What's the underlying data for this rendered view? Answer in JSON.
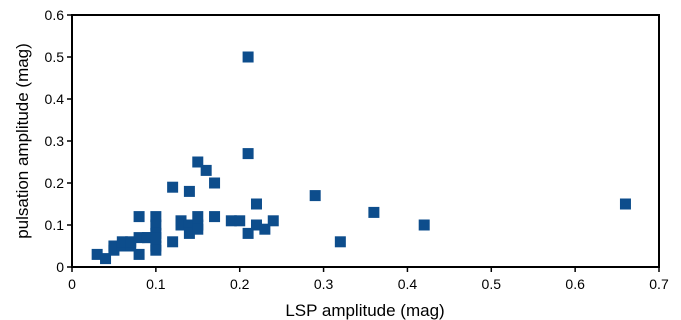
{
  "chart_data": {
    "type": "scatter",
    "title": "",
    "xlabel": "LSP amplitude (mag)",
    "ylabel": "pulsation amplitude (mag)",
    "xlim": [
      0,
      0.7
    ],
    "ylim": [
      0,
      0.6
    ],
    "xticks": [
      0,
      0.1,
      0.2,
      0.3,
      0.4,
      0.5,
      0.6,
      0.7
    ],
    "yticks": [
      0,
      0.1,
      0.2,
      0.3,
      0.4,
      0.5,
      0.6
    ],
    "xtick_labels": [
      "0",
      "0.1",
      "0.2",
      "0.3",
      "0.4",
      "0.5",
      "0.6",
      "0.7"
    ],
    "ytick_labels": [
      "0",
      "0.1",
      "0.2",
      "0.3",
      "0.4",
      "0.5",
      "0.6"
    ],
    "grid": false,
    "legend": "none",
    "marker": "square",
    "marker_color": "#0d4d8c",
    "series": [
      {
        "x": [
          0.03,
          0.04,
          0.05,
          0.05,
          0.06,
          0.06,
          0.07,
          0.07,
          0.08,
          0.08,
          0.08,
          0.09,
          0.09,
          0.1,
          0.1,
          0.1,
          0.1,
          0.1,
          0.1,
          0.12,
          0.12,
          0.13,
          0.13,
          0.14,
          0.14,
          0.14,
          0.15,
          0.15,
          0.15,
          0.15,
          0.16,
          0.17,
          0.17,
          0.19,
          0.2,
          0.21,
          0.21,
          0.21,
          0.22,
          0.22,
          0.23,
          0.24,
          0.29,
          0.32,
          0.36,
          0.42,
          0.66
        ],
        "y": [
          0.03,
          0.02,
          0.04,
          0.05,
          0.05,
          0.06,
          0.05,
          0.06,
          0.12,
          0.07,
          0.03,
          0.07,
          0.07,
          0.12,
          0.1,
          0.08,
          0.07,
          0.05,
          0.04,
          0.19,
          0.06,
          0.11,
          0.1,
          0.18,
          0.1,
          0.08,
          0.25,
          0.12,
          0.1,
          0.09,
          0.23,
          0.2,
          0.12,
          0.11,
          0.11,
          0.5,
          0.27,
          0.08,
          0.15,
          0.1,
          0.09,
          0.11,
          0.17,
          0.06,
          0.13,
          0.1,
          0.15
        ]
      }
    ]
  }
}
